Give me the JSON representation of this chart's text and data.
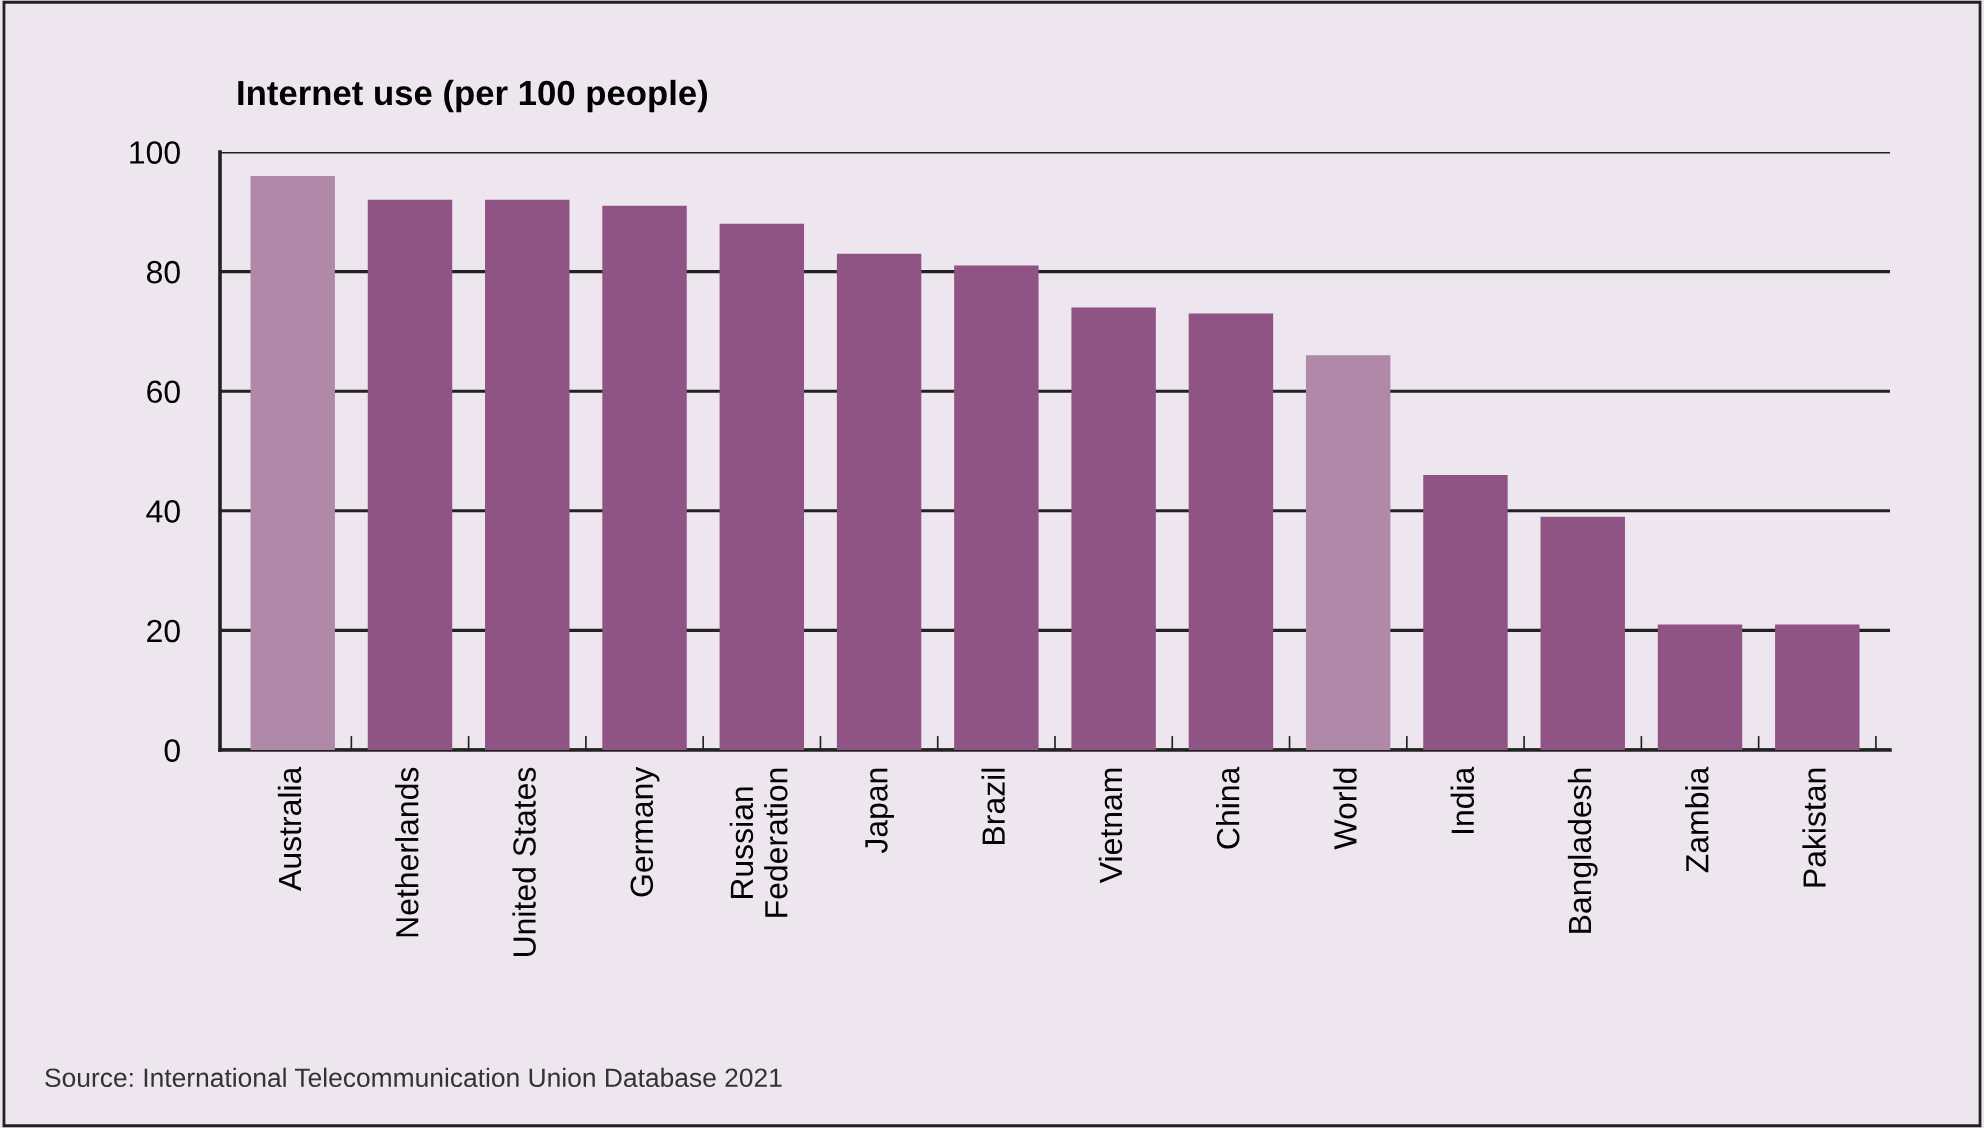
{
  "chart_data": {
    "type": "bar",
    "title": "Internet use (per 100 people)",
    "categories": [
      "Australia",
      "Netherlands",
      "United States",
      "Germany",
      "Russian\nFederation",
      "Japan",
      "Brazil",
      "Vietnam",
      "China",
      "World",
      "India",
      "Bangladesh",
      "Zambia",
      "Pakistan"
    ],
    "values": [
      96,
      92,
      92,
      91,
      88,
      83,
      81,
      74,
      73,
      66,
      46,
      39,
      21,
      21
    ],
    "colors": [
      "#b088a8",
      "#8f5384",
      "#8f5384",
      "#8f5384",
      "#8f5384",
      "#8f5384",
      "#8f5384",
      "#8f5384",
      "#8f5384",
      "#b088a8",
      "#8f5384",
      "#8f5384",
      "#8f5384",
      "#8f5384"
    ],
    "ylim": [
      0,
      100
    ],
    "yticks": [
      0,
      20,
      40,
      60,
      80,
      100
    ],
    "grid": "y",
    "annotations": [
      "Source: International Telecommunication Union Database 2021"
    ]
  }
}
